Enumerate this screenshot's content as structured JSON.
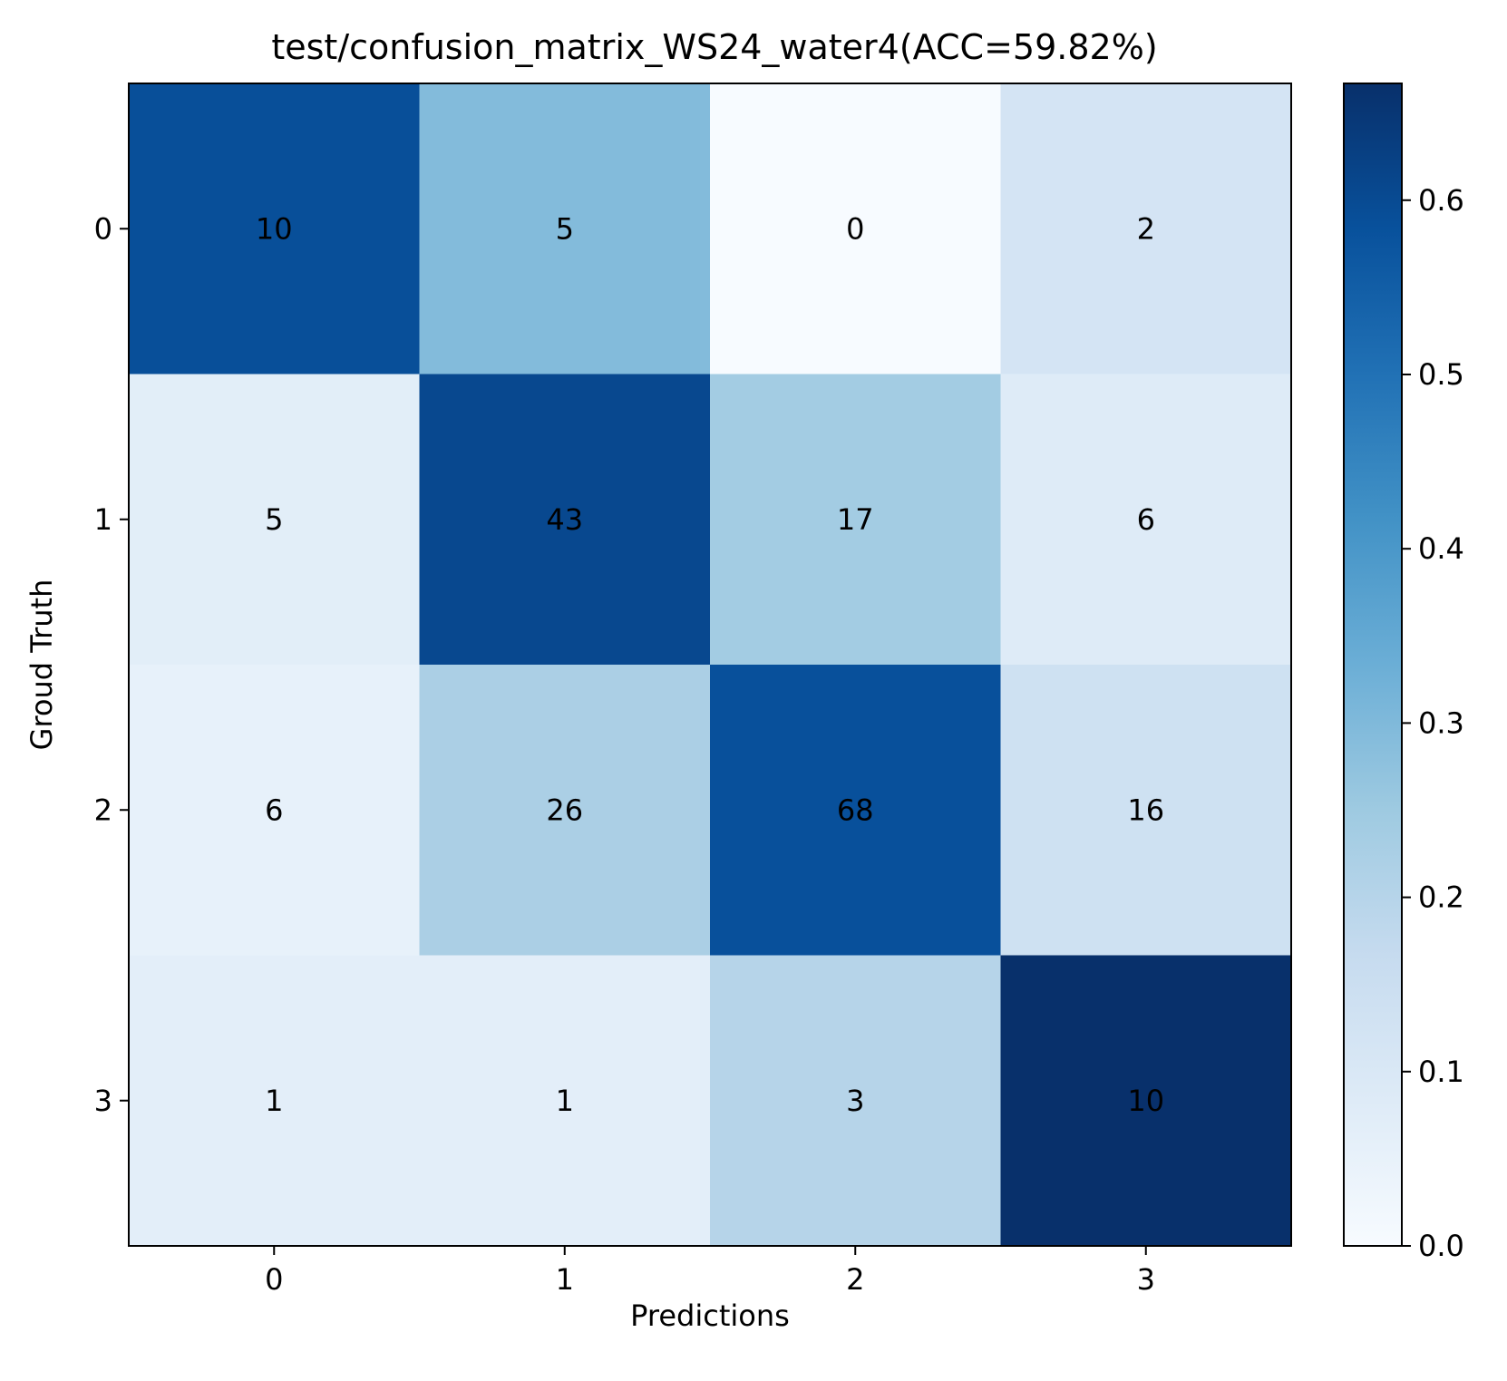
{
  "chart_data": {
    "type": "heatmap",
    "title": "test/confusion_matrix_WS24_water4(ACC=59.82%)",
    "xlabel": "Predictions",
    "ylabel": "Groud Truth",
    "x_categories": [
      "0",
      "1",
      "2",
      "3"
    ],
    "y_categories": [
      "0",
      "1",
      "2",
      "3"
    ],
    "values": [
      [
        10,
        5,
        0,
        2
      ],
      [
        5,
        43,
        17,
        6
      ],
      [
        6,
        26,
        68,
        16
      ],
      [
        1,
        1,
        3,
        10
      ]
    ],
    "normalized": [
      [
        0.588,
        0.294,
        0.0,
        0.118
      ],
      [
        0.07,
        0.606,
        0.239,
        0.085
      ],
      [
        0.052,
        0.224,
        0.586,
        0.138
      ],
      [
        0.067,
        0.067,
        0.2,
        0.667
      ]
    ],
    "colorbar": {
      "colormap": "Blues",
      "min": 0.0,
      "max": 0.667,
      "ticks": [
        "0.0",
        "0.1",
        "0.2",
        "0.3",
        "0.4",
        "0.5",
        "0.6"
      ]
    },
    "grid": false
  }
}
